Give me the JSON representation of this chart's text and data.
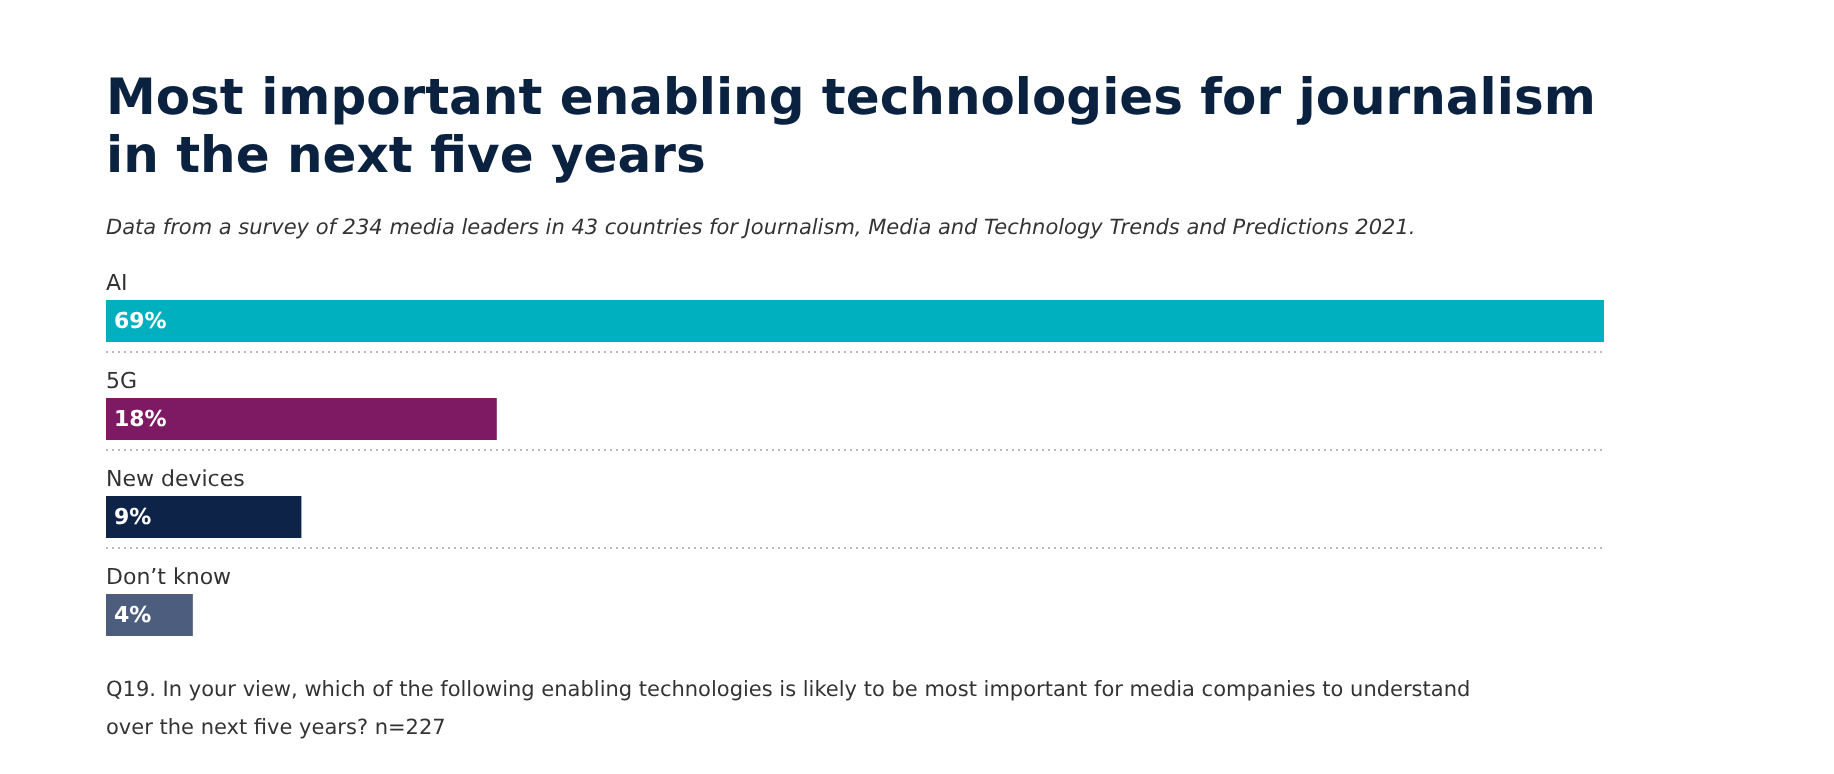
{
  "chart_data": {
    "type": "bar",
    "orientation": "horizontal",
    "title": "Most important enabling technologies for journalism in the next five years",
    "subtitle": "Data from a survey of 234 media leaders in 43 countries for Journalism, Media and Technology Trends and Predictions 2021.",
    "categories": [
      "AI",
      "5G",
      "New devices",
      "Don’t know"
    ],
    "values": [
      69,
      18,
      9,
      4
    ],
    "colors": [
      "#00b0be",
      "#7d1a63",
      "#0d2347",
      "#4c5d7e"
    ],
    "value_labels": [
      "69%",
      "18%",
      "9%",
      "4%"
    ],
    "annotations": [
      "Q19. In your view, which of the following enabling technologies is likely to be most important for media companies to understand over the next five years? n=227"
    ]
  }
}
